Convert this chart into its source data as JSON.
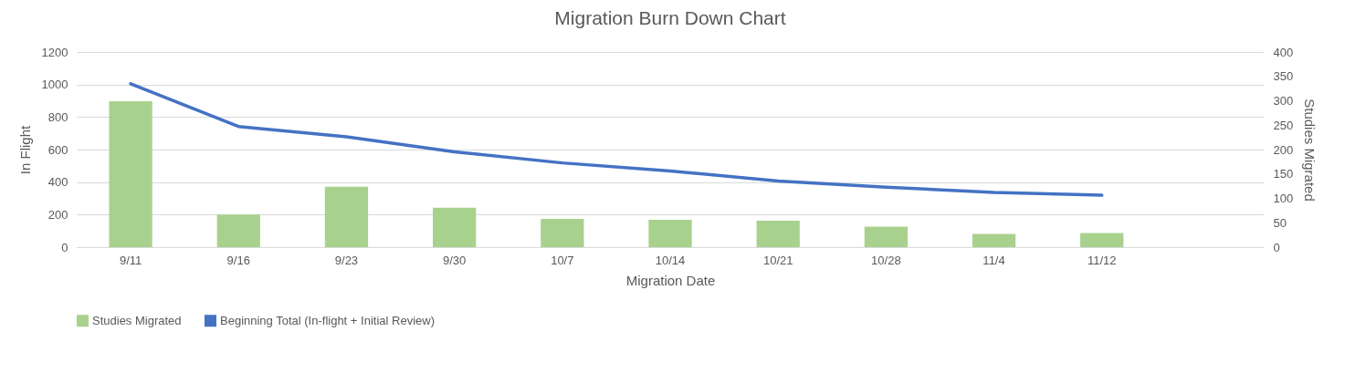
{
  "chart_data": {
    "type": "bar",
    "title": "Migration Burn Down Chart",
    "xlabel": "Migration Date",
    "ylabel": "In Flight",
    "y2label": "Studies Migrated",
    "categories": [
      "9/11",
      "9/16",
      "9/23",
      "9/30",
      "10/7",
      "10/14",
      "10/21",
      "10/28",
      "11/4",
      "11/12",
      null
    ],
    "series": [
      {
        "name": "Studies Migrated",
        "axis": "y2",
        "color": "#a9d18e",
        "values": [
          299,
          67,
          124,
          81,
          58,
          56,
          54,
          42,
          27,
          29,
          null
        ]
      },
      {
        "name": "Beginning Total (In-flight + Initial Review)",
        "type": "line",
        "color": "#4472c4",
        "values": [
          1005,
          742,
          678,
          586,
          518,
          468,
          407,
          369,
          336,
          319,
          null
        ]
      }
    ],
    "ylim": [
      0,
      1200
    ],
    "yticks": [
      0,
      200,
      400,
      600,
      800,
      1000,
      1200
    ],
    "y2lim": [
      0,
      400
    ],
    "y2ticks": [
      0,
      50,
      100,
      150,
      200,
      250,
      300,
      350,
      400
    ],
    "grid": "y",
    "legend": "bottom",
    "line_style": "solid"
  }
}
